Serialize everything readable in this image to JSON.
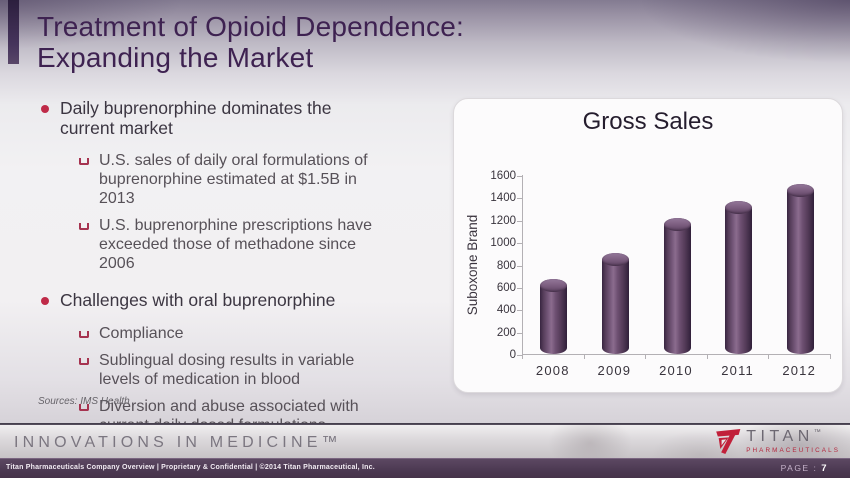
{
  "slide": {
    "title_line1": "Treatment of Opioid Dependence:",
    "title_line2": "Expanding the Market",
    "bullets": [
      {
        "label": "Daily buprenorphine dominates the current market",
        "subs": [
          "U.S. sales of daily oral formulations of buprenorphine estimated at $1.5B in 2013",
          "U.S. buprenorphine prescriptions have exceeded those of methadone since 2006"
        ]
      },
      {
        "label": "Challenges with oral buprenorphine",
        "subs": [
          "Compliance",
          "Sublingual dosing results in variable levels of medication in blood",
          "Diversion and abuse associated with current daily dosed formulations"
        ]
      }
    ],
    "sources": "Sources: IMS Health"
  },
  "chart_data": {
    "type": "bar",
    "title": "Gross Sales",
    "ylabel": "Suboxone Brand",
    "xlabel": "",
    "categories": [
      "2008",
      "2009",
      "2010",
      "2011",
      "2012"
    ],
    "values": [
      620,
      850,
      1160,
      1310,
      1470
    ],
    "ylim": [
      0,
      1600
    ],
    "ytick_step": 200,
    "grid": false,
    "legend": "none",
    "bar_color": "#593e5c"
  },
  "footer": {
    "tagline": "INNOVATIONS IN MEDICINE™",
    "logo_text": "TITAN",
    "logo_tm": "™",
    "logo_sub": "PHARMACEUTICALS",
    "legal": "Titan Pharmaceuticals Company Overview | Proprietary & Confidential | ©2014 Titan Pharmaceutical, Inc.",
    "page_label": "PAGE :",
    "page_number": "7"
  },
  "icons": {
    "bullet": "filled-circle",
    "sub_bullet": "u-shape-square",
    "logo_mark": "titan-red-t-flag"
  },
  "colors": {
    "title_purple": "#3e2251",
    "accent_bar": "#46345c",
    "bullet_red": "#bf2a48",
    "bar_purple": "#593e5c",
    "strip_purple": "#4c3952",
    "logo_red": "#c1203a"
  }
}
